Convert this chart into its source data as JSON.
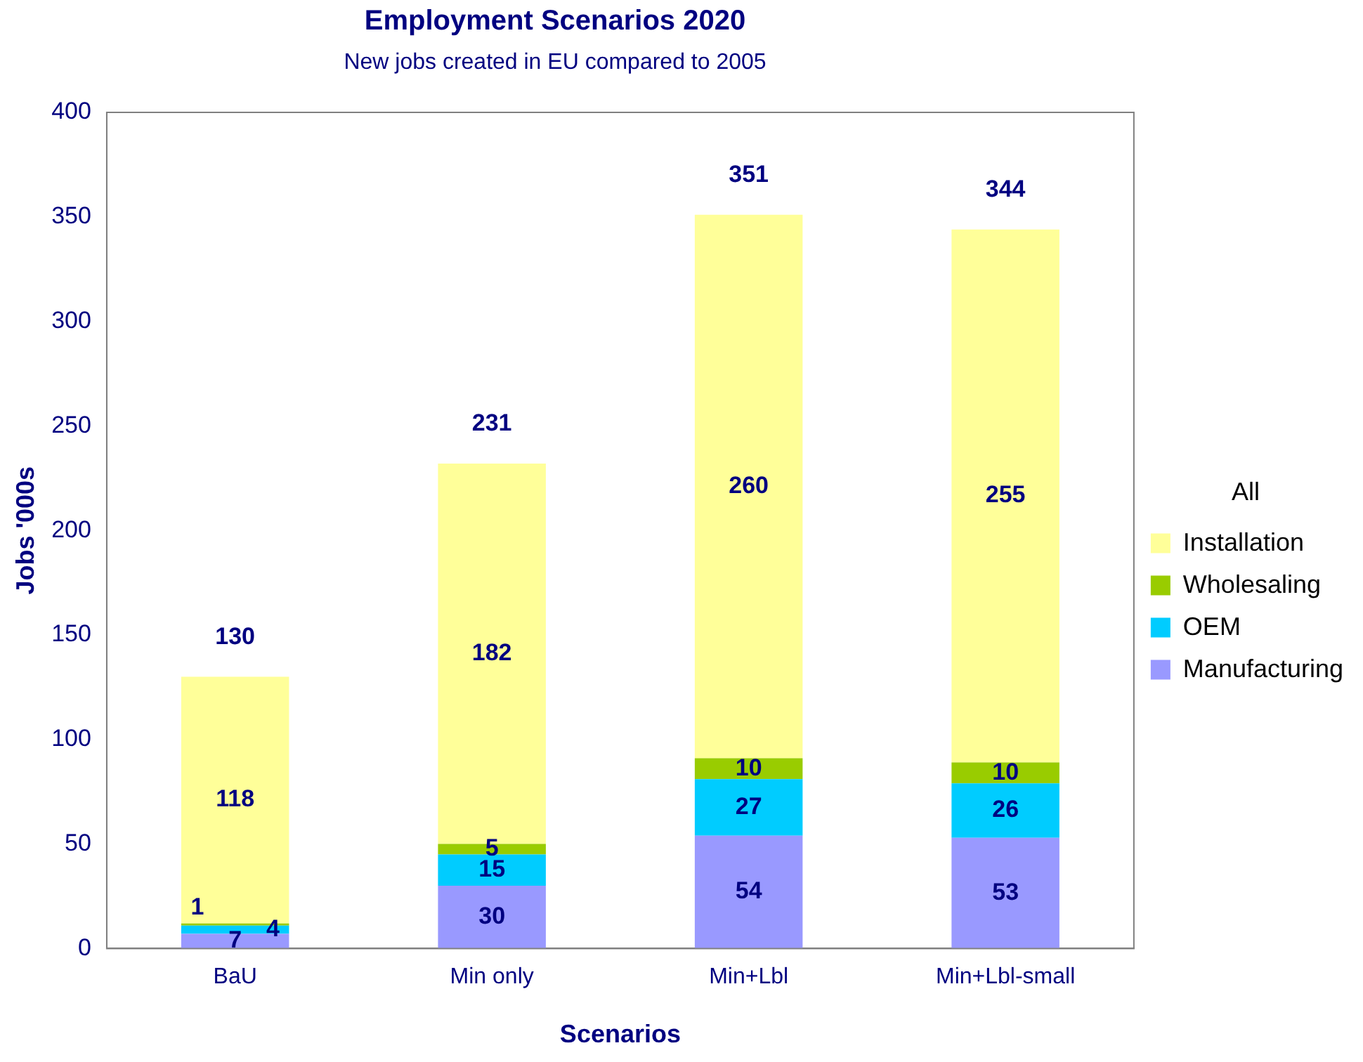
{
  "chart_data": {
    "type": "bar",
    "title": "Employment Scenarios 2020",
    "subtitle": "New  jobs created in EU compared to 2005",
    "xlabel": "Scenarios",
    "ylabel": "Jobs '000s",
    "categories": [
      "BaU",
      "Min only",
      "Min+Lbl",
      "Min+Lbl-small"
    ],
    "series": [
      {
        "name": "Manufacturing",
        "color": "#9999ff",
        "values": [
          7,
          30,
          54,
          53
        ]
      },
      {
        "name": "OEM",
        "color": "#00ccff",
        "values": [
          4,
          15,
          27,
          26
        ]
      },
      {
        "name": "Wholesaling",
        "color": "#99cc00",
        "values": [
          1,
          5,
          10,
          10
        ]
      },
      {
        "name": "Installation",
        "color": "#ffff99",
        "values": [
          118,
          182,
          260,
          255
        ]
      }
    ],
    "stacked": true,
    "totals": [
      "130",
      "231",
      "351",
      "344"
    ],
    "legend_title": "All",
    "legend": "right",
    "data_labels": true,
    "grid": false,
    "ylim": [
      0,
      400
    ],
    "yticks": [
      0,
      50,
      100,
      150,
      200,
      250,
      300,
      350,
      400
    ]
  }
}
